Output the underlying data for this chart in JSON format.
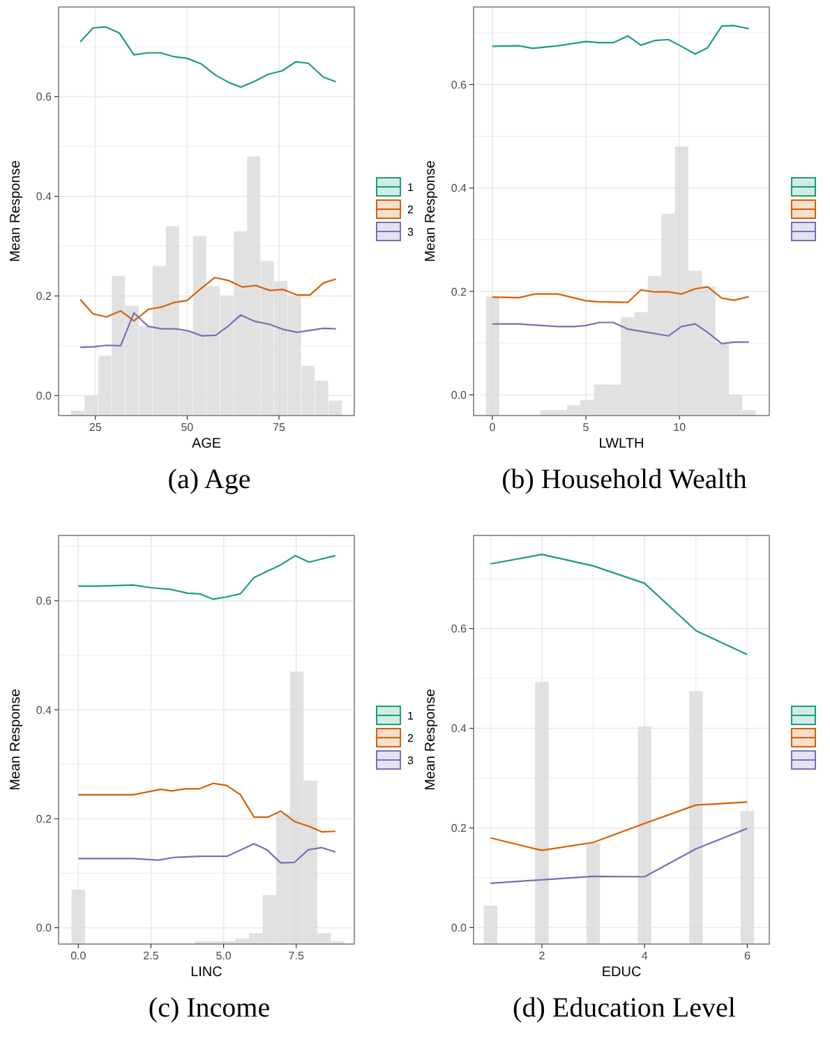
{
  "chart_data": [
    {
      "type": "line",
      "title": "(a) Age",
      "xlabel": "AGE",
      "ylabel": "Mean Response",
      "xlim": [
        15,
        95.5
      ],
      "ylim": [
        -0.04,
        0.78
      ],
      "xticks": [
        25,
        50,
        75
      ],
      "yticks": [
        {
          "value": 0,
          "label": "0.0"
        },
        {
          "value": 0.1,
          "label": null
        },
        {
          "value": 0.2,
          "label": "0.2"
        },
        {
          "value": 0.3,
          "label": null
        },
        {
          "value": 0.4,
          "label": "0.4"
        },
        {
          "value": 0.5,
          "label": null
        },
        {
          "value": 0.6,
          "label": "0.6"
        },
        {
          "value": 0.7,
          "label": null
        }
      ],
      "grid": true,
      "legend": "right",
      "series": [
        {
          "type": "bar",
          "color": "#d9d9d9",
          "x": [
            20.2,
            23.9,
            27.6,
            31.3,
            35,
            38.7,
            42.4,
            46,
            49.7,
            53.4,
            57.1,
            60.8,
            64.5,
            68.1,
            71.8,
            75.5,
            79.2,
            82.9,
            86.6,
            90.3
          ],
          "base": [
            -0.04,
            -0.04,
            -0.04,
            -0.04,
            -0.04,
            -0.04,
            -0.04,
            -0.04,
            -0.04,
            -0.04,
            -0.04,
            -0.04,
            -0.04,
            -0.04,
            -0.04,
            -0.04,
            -0.04,
            -0.04,
            -0.04,
            -0.04
          ],
          "values": [
            0.01,
            0.04,
            0.12,
            0.28,
            0.22,
            0.18,
            0.3,
            0.38,
            0.17,
            0.36,
            0.26,
            0.24,
            0.37,
            0.52,
            0.31,
            0.27,
            0.24,
            0.1,
            0.07,
            0.03
          ]
        },
        {
          "name": "1",
          "color": "#1b9e77",
          "x": [
            20.9,
            24.4,
            27.75,
            31.5,
            35.5,
            39.4,
            42.75,
            46.5,
            50,
            53.75,
            57.75,
            61.5,
            64.6,
            68.4,
            72.1,
            75.9,
            79.6,
            83,
            87.1,
            90.5
          ],
          "values": [
            0.71,
            0.738,
            0.74,
            0.728,
            0.684,
            0.688,
            0.688,
            0.68,
            0.677,
            0.666,
            0.643,
            0.628,
            0.619,
            0.631,
            0.645,
            0.652,
            0.67,
            0.667,
            0.639,
            0.63
          ]
        },
        {
          "name": "2",
          "color": "#d95f02",
          "x": [
            20.9,
            24.4,
            28,
            31.9,
            35.5,
            39.4,
            43.1,
            46.5,
            50,
            53.75,
            57.5,
            61.25,
            65,
            68.75,
            72.5,
            76.1,
            79.9,
            83.4,
            87.1,
            90.5
          ],
          "values": [
            0.193,
            0.164,
            0.158,
            0.17,
            0.15,
            0.173,
            0.178,
            0.187,
            0.191,
            0.215,
            0.237,
            0.231,
            0.218,
            0.221,
            0.211,
            0.213,
            0.202,
            0.202,
            0.226,
            0.234
          ]
        },
        {
          "name": "3",
          "color": "#7570b3",
          "x": [
            20.9,
            24.6,
            28,
            31.9,
            35.5,
            39.4,
            43.1,
            46.9,
            50.25,
            54,
            57.75,
            61.25,
            64.6,
            68.4,
            72.5,
            76.1,
            79.9,
            83.4,
            87.1,
            90.5
          ],
          "values": [
            0.097,
            0.098,
            0.101,
            0.1,
            0.166,
            0.139,
            0.134,
            0.134,
            0.13,
            0.12,
            0.121,
            0.14,
            0.162,
            0.149,
            0.143,
            0.133,
            0.127,
            0.131,
            0.135,
            0.134
          ]
        }
      ]
    },
    {
      "type": "line",
      "title": "(b) Household Wealth",
      "xlabel": "LWLTH",
      "ylabel": "Mean Response",
      "xlim": [
        -1,
        14.8
      ],
      "ylim": [
        -0.04,
        0.75
      ],
      "xticks": [
        0,
        5,
        10
      ],
      "yticks": [
        {
          "value": 0,
          "label": "0.0"
        },
        {
          "value": 0.1,
          "label": null
        },
        {
          "value": 0.2,
          "label": "0.2"
        },
        {
          "value": 0.3,
          "label": null
        },
        {
          "value": 0.4,
          "label": "0.4"
        },
        {
          "value": 0.5,
          "label": null
        },
        {
          "value": 0.6,
          "label": "0.6"
        },
        {
          "value": 0.7,
          "label": null
        }
      ],
      "grid": true,
      "legend": "right",
      "series": [
        {
          "type": "bar",
          "color": "#d9d9d9",
          "x": [
            0.02,
            2.9,
            3.63,
            4.35,
            5.07,
            5.79,
            6.51,
            7.23,
            7.95,
            8.67,
            9.39,
            10.11,
            10.84,
            11.56,
            12.28,
            13,
            13.72
          ],
          "base": [
            -0.04,
            -0.04,
            -0.04,
            -0.04,
            -0.04,
            -0.04,
            -0.04,
            -0.04,
            -0.04,
            -0.04,
            -0.04,
            -0.04,
            -0.04,
            -0.04,
            -0.04,
            -0.04,
            -0.04
          ],
          "values": [
            0.23,
            0.01,
            0.01,
            0.02,
            0.03,
            0.06,
            0.06,
            0.19,
            0.2,
            0.27,
            0.39,
            0.52,
            0.28,
            0.25,
            0.14,
            0.04,
            0.01
          ]
        },
        {
          "color": "#1b9e77",
          "x": [
            0,
            1.42,
            2.16,
            3.5,
            5,
            5.72,
            6.46,
            7.25,
            7.94,
            8.67,
            9.41,
            10.1,
            10.84,
            11.5,
            12.26,
            12.92,
            13.7
          ],
          "values": [
            0.674,
            0.675,
            0.67,
            0.675,
            0.683,
            0.681,
            0.681,
            0.694,
            0.676,
            0.685,
            0.687,
            0.674,
            0.659,
            0.671,
            0.713,
            0.714,
            0.708
          ]
        },
        {
          "color": "#d95f02",
          "x": [
            0,
            1.42,
            2.28,
            3.5,
            5,
            5.72,
            7.25,
            7.94,
            8.67,
            9.41,
            10.1,
            10.84,
            11.5,
            12.26,
            12.92,
            13.7
          ],
          "values": [
            0.189,
            0.188,
            0.195,
            0.195,
            0.182,
            0.18,
            0.179,
            0.203,
            0.199,
            0.199,
            0.195,
            0.205,
            0.209,
            0.187,
            0.183,
            0.19
          ]
        },
        {
          "color": "#7570b3",
          "x": [
            0,
            1.42,
            3.5,
            4.37,
            5,
            5.72,
            6.46,
            7.25,
            7.94,
            9.41,
            10.1,
            10.84,
            11.5,
            12.26,
            12.92,
            13.7
          ],
          "values": [
            0.137,
            0.137,
            0.132,
            0.132,
            0.134,
            0.14,
            0.14,
            0.127,
            0.123,
            0.114,
            0.132,
            0.137,
            0.121,
            0.099,
            0.102,
            0.102
          ]
        }
      ]
    },
    {
      "type": "line",
      "title": "(c) Income",
      "xlabel": "LINC",
      "ylabel": "Mean Response",
      "xlim": [
        -0.68,
        9.5
      ],
      "ylim": [
        -0.03,
        0.72
      ],
      "xticks": [
        {
          "value": 0,
          "label": "0.0"
        },
        {
          "value": 2.5,
          "label": "2.5"
        },
        {
          "value": 5,
          "label": "5.0"
        },
        {
          "value": 7.5,
          "label": "7.5"
        }
      ],
      "yticks": [
        {
          "value": 0,
          "label": "0.0"
        },
        {
          "value": 0.1,
          "label": null
        },
        {
          "value": 0.2,
          "label": "0.2"
        },
        {
          "value": 0.3,
          "label": null
        },
        {
          "value": 0.4,
          "label": "0.4"
        },
        {
          "value": 0.5,
          "label": null
        },
        {
          "value": 0.6,
          "label": "0.6"
        },
        {
          "value": 0.7,
          "label": null
        }
      ],
      "grid": true,
      "legend": "right",
      "series": [
        {
          "type": "bar",
          "color": "#d9d9d9",
          "x": [
            0,
            4.23,
            4.7,
            5.17,
            5.64,
            6.11,
            6.58,
            7.05,
            7.52,
            7.99,
            8.46,
            8.93
          ],
          "base": [
            -0.03,
            -0.03,
            -0.03,
            -0.03,
            -0.03,
            -0.03,
            -0.03,
            -0.03,
            -0.03,
            -0.03,
            -0.03,
            -0.03
          ],
          "values": [
            0.1,
            0.005,
            0.005,
            0.005,
            0.01,
            0.02,
            0.09,
            0.24,
            0.5,
            0.3,
            0.02,
            0.005
          ]
        },
        {
          "name": "1",
          "color": "#1b9e77",
          "x": [
            0,
            0.63,
            1.89,
            2.52,
            3.19,
            3.77,
            4.17,
            4.64,
            5.08,
            5.58,
            6.05,
            7,
            7.47,
            7.94,
            8.85
          ],
          "values": [
            0.627,
            0.627,
            0.629,
            0.624,
            0.621,
            0.614,
            0.613,
            0.603,
            0.607,
            0.613,
            0.643,
            0.667,
            0.683,
            0.671,
            0.683
          ]
        },
        {
          "name": "2",
          "color": "#d95f02",
          "x": [
            0,
            1.89,
            2.83,
            3.22,
            3.69,
            4.17,
            4.64,
            5.11,
            5.58,
            6.05,
            6.53,
            6.97,
            7.44,
            7.94,
            8.38,
            8.85
          ],
          "values": [
            0.244,
            0.244,
            0.254,
            0.251,
            0.255,
            0.255,
            0.265,
            0.261,
            0.244,
            0.203,
            0.203,
            0.214,
            0.195,
            0.186,
            0.176,
            0.177
          ]
        },
        {
          "name": "3",
          "color": "#7570b3",
          "x": [
            0,
            1.89,
            2.75,
            3.3,
            4.17,
            5.11,
            6.05,
            6.49,
            6.97,
            7.44,
            7.91,
            8.38,
            8.85
          ],
          "values": [
            0.127,
            0.127,
            0.124,
            0.129,
            0.131,
            0.131,
            0.154,
            0.143,
            0.119,
            0.12,
            0.143,
            0.147,
            0.139
          ]
        }
      ]
    },
    {
      "type": "line",
      "title": "(d) Education Level",
      "xlabel": "EDUC",
      "ylabel": "Mean Response",
      "xlim": [
        0.67,
        6.43
      ],
      "ylim": [
        -0.033,
        0.787
      ],
      "xticks": [
        {
          "value": 1,
          "label": null
        },
        {
          "value": 2,
          "label": "2"
        },
        {
          "value": 3,
          "label": null
        },
        {
          "value": 4,
          "label": "4"
        },
        {
          "value": 5,
          "label": null
        },
        {
          "value": 6,
          "label": "6"
        }
      ],
      "yticks": [
        {
          "value": 0,
          "label": "0.0"
        },
        {
          "value": 0.1,
          "label": null
        },
        {
          "value": 0.2,
          "label": "0.2"
        },
        {
          "value": 0.3,
          "label": null
        },
        {
          "value": 0.4,
          "label": "0.4"
        },
        {
          "value": 0.5,
          "label": null
        },
        {
          "value": 0.6,
          "label": "0.6"
        },
        {
          "value": 0.7,
          "label": null
        }
      ],
      "grid": true,
      "legend": "right",
      "series": [
        {
          "type": "bar",
          "color": "#d9d9d9",
          "x": [
            1,
            2,
            3,
            4,
            5,
            6
          ],
          "base": [
            -0.033,
            -0.033,
            -0.033,
            -0.033,
            -0.033,
            -0.033
          ],
          "values": [
            0.077,
            0.526,
            0.203,
            0.437,
            0.508,
            0.267
          ]
        },
        {
          "color": "#1b9e77",
          "x": [
            1,
            2,
            3,
            4,
            5,
            6
          ],
          "values": [
            0.73,
            0.749,
            0.726,
            0.691,
            0.596,
            0.548
          ]
        },
        {
          "color": "#d95f02",
          "x": [
            1,
            2,
            3,
            4,
            5,
            6
          ],
          "values": [
            0.18,
            0.155,
            0.171,
            0.209,
            0.246,
            0.252
          ]
        },
        {
          "color": "#7570b3",
          "x": [
            1,
            2,
            3,
            4,
            5,
            6
          ],
          "values": [
            0.089,
            0.096,
            0.103,
            0.102,
            0.158,
            0.199
          ]
        }
      ]
    }
  ]
}
